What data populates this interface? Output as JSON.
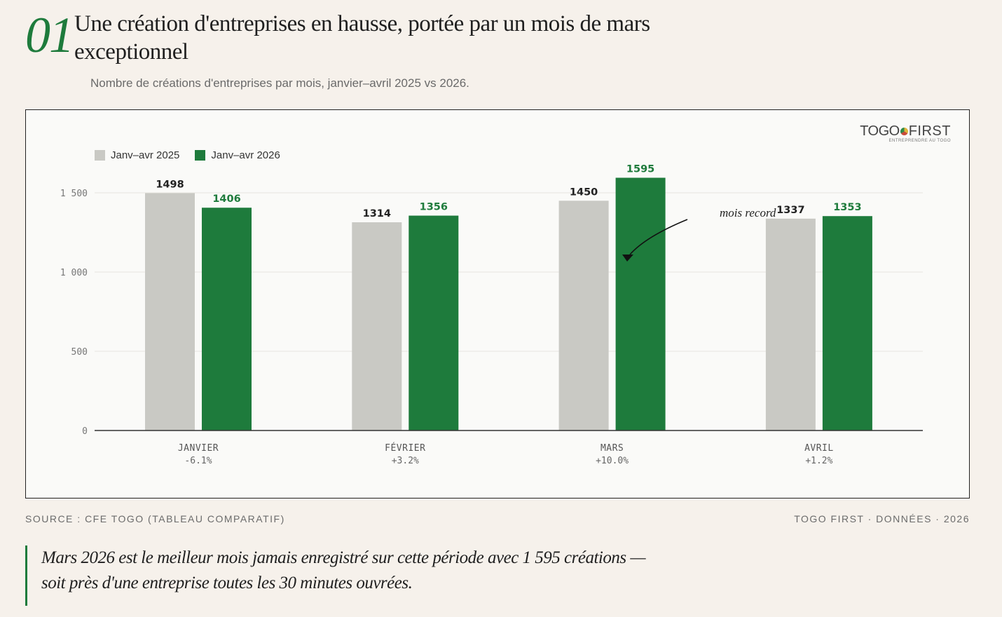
{
  "header": {
    "number": "01",
    "title": "Une création d'entreprises en hausse, portée par un mois de mars exceptionnel",
    "subtitle": "Nombre de créations d'entreprises par mois, janvier–avril 2025 vs 2026."
  },
  "logo": {
    "main_a": "TOGO",
    "main_b": "FIRST",
    "tagline": "ENTREPRENDRE AU TOGO"
  },
  "footer": {
    "source": "SOURCE : CFE TOGO (TABLEAU COMPARATIF)",
    "credit": "TOGO FIRST · DONNÉES · 2026"
  },
  "quote": "Mars 2026 est le meilleur mois jamais enregistré sur cette période avec 1 595 créations — soit près d'une entreprise toutes les 30 minutes ouvrées.",
  "colors": {
    "series_2025": "#c9c9c4",
    "series_2026": "#1e7b3c",
    "accent": "#1e7b3c"
  },
  "chart_data": {
    "type": "bar",
    "categories": [
      "JANVIER",
      "FÉVRIER",
      "MARS",
      "AVRIL"
    ],
    "category_changes": [
      "-6.1%",
      "+3.2%",
      "+10.0%",
      "+1.2%"
    ],
    "series": [
      {
        "name": "Janv–avr 2025",
        "values": [
          1498,
          1314,
          1450,
          1337
        ]
      },
      {
        "name": "Janv–avr 2026",
        "values": [
          1406,
          1356,
          1595,
          1353
        ]
      }
    ],
    "ylim": [
      0,
      1600
    ],
    "yticks": [
      0,
      500,
      1000,
      1500
    ],
    "ytick_labels": [
      "0",
      "500",
      "1 000",
      "1 500"
    ],
    "grid": true,
    "legend": "top-left",
    "annotation": {
      "text": "mois record",
      "category": "MARS",
      "series": "Janv–avr 2026"
    }
  }
}
